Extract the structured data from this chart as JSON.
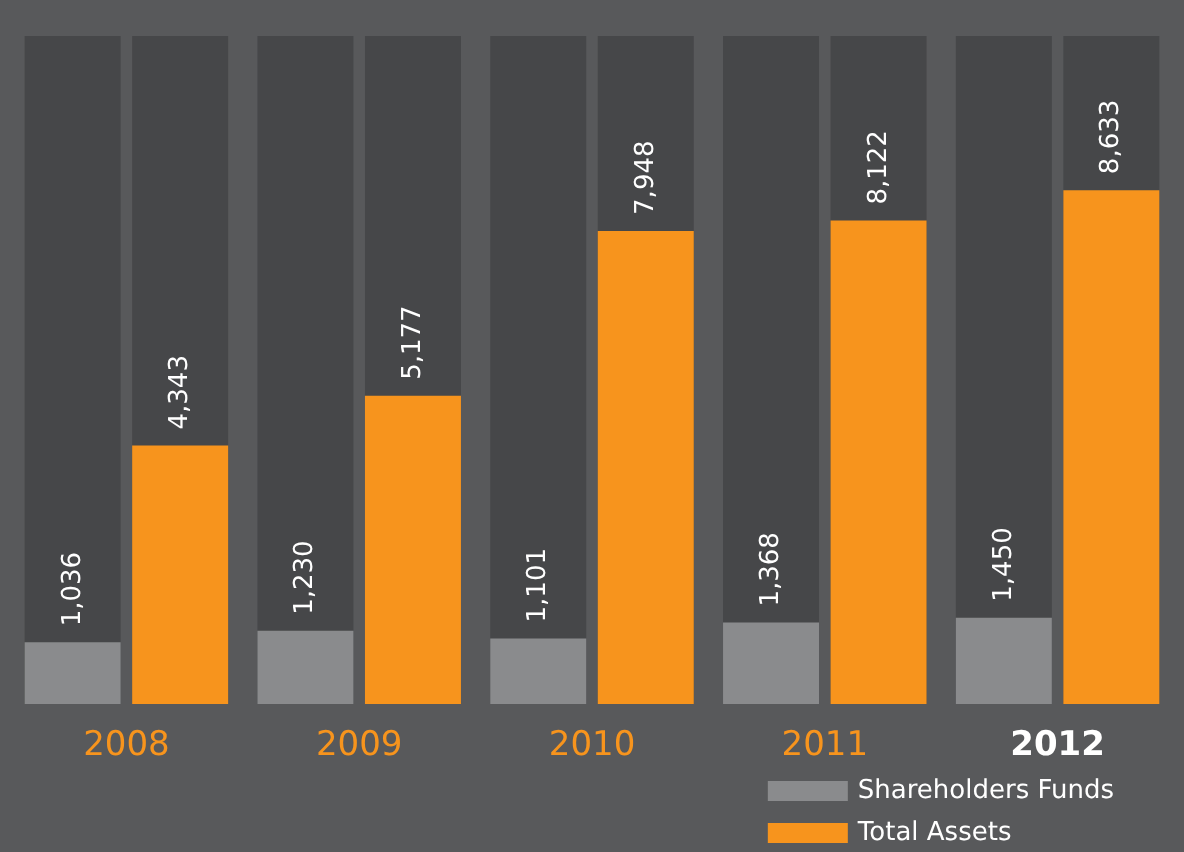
{
  "chart_data": {
    "type": "bar",
    "categories": [
      "2008",
      "2009",
      "2010",
      "2011",
      "2012"
    ],
    "series": [
      {
        "name": "Shareholders Funds",
        "color": "#8a8b8d",
        "values": [
          1036,
          1230,
          1101,
          1368,
          1450
        ],
        "value_labels": [
          "1,036",
          "1,230",
          "1,101",
          "1,368",
          "1,450"
        ]
      },
      {
        "name": "Total Assets",
        "color": "#f7941d",
        "values": [
          4343,
          5177,
          7948,
          8122,
          8633
        ],
        "value_labels": [
          "4,343",
          "5,177",
          "7,948",
          "8,122",
          "8,633"
        ]
      }
    ],
    "tick_labels": "x",
    "legend": "bottom"
  }
}
